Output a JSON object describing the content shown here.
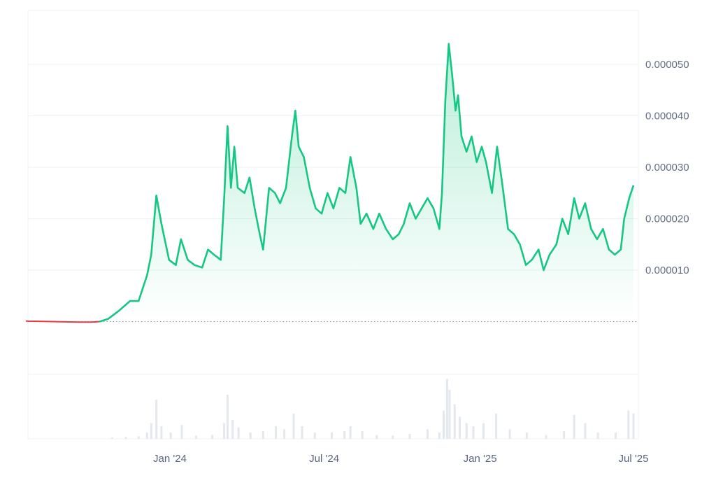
{
  "chart_data": {
    "type": "area",
    "title": "",
    "xlabel": "",
    "ylabel": "",
    "ylim": [
      -1e-05,
      6e-05
    ],
    "baseline_value": 0.0,
    "grid": "horizontal",
    "colors": {
      "up": "#16c784",
      "down": "#ea3943",
      "grid": "#eff2f5",
      "volume": "#e3e7ee"
    },
    "y_ticks": [
      {
        "value": 1e-05,
        "label": "0.000010"
      },
      {
        "value": 2e-05,
        "label": "0.000020"
      },
      {
        "value": 3e-05,
        "label": "0.000030"
      },
      {
        "value": 4e-05,
        "label": "0.000040"
      },
      {
        "value": 5e-05,
        "label": "0.000050"
      }
    ],
    "x_ticks": [
      {
        "date": "2024-01-01",
        "label": "Jan '24"
      },
      {
        "date": "2024-07-01",
        "label": "Jul '24"
      },
      {
        "date": "2025-01-01",
        "label": "Jan '25"
      },
      {
        "date": "2025-07-01",
        "label": "Jul '25"
      }
    ],
    "series": [
      {
        "points": [
          [
            "2023-07-15",
            1e-07
          ],
          [
            "2023-08-15",
            0.0
          ],
          [
            "2023-09-15",
            -1e-07
          ],
          [
            "2023-10-01",
            -1e-07
          ],
          [
            "2023-10-10",
            0.0
          ],
          [
            "2023-10-20",
            5e-07
          ],
          [
            "2023-11-01",
            2e-06
          ],
          [
            "2023-11-15",
            4e-06
          ],
          [
            "2023-11-25",
            4e-06
          ],
          [
            "2023-12-05",
            9e-06
          ],
          [
            "2023-12-10",
            1.3e-05
          ],
          [
            "2023-12-16",
            2.45e-05
          ],
          [
            "2023-12-22",
            1.9e-05
          ],
          [
            "2023-12-31",
            1.2e-05
          ],
          [
            "2024-01-08",
            1.1e-05
          ],
          [
            "2024-01-14",
            1.6e-05
          ],
          [
            "2024-01-22",
            1.2e-05
          ],
          [
            "2024-01-30",
            1.1e-05
          ],
          [
            "2024-02-08",
            1.05e-05
          ],
          [
            "2024-02-15",
            1.4e-05
          ],
          [
            "2024-02-22",
            1.3e-05
          ],
          [
            "2024-03-01",
            1.2e-05
          ],
          [
            "2024-03-05",
            2.4e-05
          ],
          [
            "2024-03-09",
            3.8e-05
          ],
          [
            "2024-03-13",
            2.6e-05
          ],
          [
            "2024-03-17",
            3.4e-05
          ],
          [
            "2024-03-21",
            2.6e-05
          ],
          [
            "2024-03-29",
            2.5e-05
          ],
          [
            "2024-04-04",
            2.8e-05
          ],
          [
            "2024-04-10",
            2.2e-05
          ],
          [
            "2024-04-16",
            1.7e-05
          ],
          [
            "2024-04-20",
            1.4e-05
          ],
          [
            "2024-04-27",
            2.6e-05
          ],
          [
            "2024-05-04",
            2.5e-05
          ],
          [
            "2024-05-10",
            2.3e-05
          ],
          [
            "2024-05-17",
            2.6e-05
          ],
          [
            "2024-05-24",
            3.6e-05
          ],
          [
            "2024-05-28",
            4.1e-05
          ],
          [
            "2024-06-01",
            3.4e-05
          ],
          [
            "2024-06-07",
            3.2e-05
          ],
          [
            "2024-06-14",
            2.6e-05
          ],
          [
            "2024-06-21",
            2.2e-05
          ],
          [
            "2024-06-28",
            2.1e-05
          ],
          [
            "2024-07-05",
            2.5e-05
          ],
          [
            "2024-07-12",
            2.2e-05
          ],
          [
            "2024-07-19",
            2.6e-05
          ],
          [
            "2024-07-26",
            2.5e-05
          ],
          [
            "2024-08-01",
            3.2e-05
          ],
          [
            "2024-08-08",
            2.6e-05
          ],
          [
            "2024-08-13",
            1.9e-05
          ],
          [
            "2024-08-20",
            2.1e-05
          ],
          [
            "2024-08-28",
            1.8e-05
          ],
          [
            "2024-09-04",
            2.1e-05
          ],
          [
            "2024-09-12",
            1.8e-05
          ],
          [
            "2024-09-20",
            1.6e-05
          ],
          [
            "2024-09-27",
            1.7e-05
          ],
          [
            "2024-10-03",
            1.9e-05
          ],
          [
            "2024-10-10",
            2.3e-05
          ],
          [
            "2024-10-17",
            2e-05
          ],
          [
            "2024-10-24",
            2.2e-05
          ],
          [
            "2024-10-31",
            2.4e-05
          ],
          [
            "2024-11-07",
            2.2e-05
          ],
          [
            "2024-11-14",
            1.8e-05
          ],
          [
            "2024-11-17",
            2.5e-05
          ],
          [
            "2024-11-21",
            4.3e-05
          ],
          [
            "2024-11-25",
            5.4e-05
          ],
          [
            "2024-11-29",
            4.8e-05
          ],
          [
            "2024-12-03",
            4.1e-05
          ],
          [
            "2024-12-06",
            4.4e-05
          ],
          [
            "2024-12-10",
            3.6e-05
          ],
          [
            "2024-12-16",
            3.3e-05
          ],
          [
            "2024-12-22",
            3.6e-05
          ],
          [
            "2024-12-28",
            3.1e-05
          ],
          [
            "2025-01-03",
            3.4e-05
          ],
          [
            "2025-01-08",
            3.1e-05
          ],
          [
            "2025-01-15",
            2.5e-05
          ],
          [
            "2025-01-21",
            3.4e-05
          ],
          [
            "2025-01-27",
            2.7e-05
          ],
          [
            "2025-02-03",
            1.8e-05
          ],
          [
            "2025-02-10",
            1.7e-05
          ],
          [
            "2025-02-17",
            1.5e-05
          ],
          [
            "2025-02-24",
            1.1e-05
          ],
          [
            "2025-03-03",
            1.2e-05
          ],
          [
            "2025-03-11",
            1.4e-05
          ],
          [
            "2025-03-17",
            1e-05
          ],
          [
            "2025-03-24",
            1.3e-05
          ],
          [
            "2025-04-01",
            1.5e-05
          ],
          [
            "2025-04-08",
            2e-05
          ],
          [
            "2025-04-15",
            1.7e-05
          ],
          [
            "2025-04-22",
            2.4e-05
          ],
          [
            "2025-04-28",
            2e-05
          ],
          [
            "2025-05-05",
            2.3e-05
          ],
          [
            "2025-05-12",
            1.8e-05
          ],
          [
            "2025-05-19",
            1.6e-05
          ],
          [
            "2025-05-26",
            1.8e-05
          ],
          [
            "2025-06-02",
            1.4e-05
          ],
          [
            "2025-06-09",
            1.3e-05
          ],
          [
            "2025-06-16",
            1.4e-05
          ],
          [
            "2025-06-20",
            2e-05
          ],
          [
            "2025-06-26",
            2.4e-05
          ],
          [
            "2025-07-01",
            2.65e-05
          ]
        ]
      }
    ],
    "volume": [
      [
        "2023-10-25",
        0.02
      ],
      [
        "2023-11-10",
        0.03
      ],
      [
        "2023-11-25",
        0.04
      ],
      [
        "2023-12-05",
        0.1
      ],
      [
        "2023-12-10",
        0.25
      ],
      [
        "2023-12-16",
        0.62
      ],
      [
        "2023-12-22",
        0.2
      ],
      [
        "2024-01-02",
        0.1
      ],
      [
        "2024-01-15",
        0.22
      ],
      [
        "2024-02-01",
        0.05
      ],
      [
        "2024-02-20",
        0.06
      ],
      [
        "2024-03-05",
        0.25
      ],
      [
        "2024-03-09",
        0.7
      ],
      [
        "2024-03-15",
        0.3
      ],
      [
        "2024-03-22",
        0.18
      ],
      [
        "2024-04-05",
        0.1
      ],
      [
        "2024-04-20",
        0.12
      ],
      [
        "2024-05-05",
        0.2
      ],
      [
        "2024-05-15",
        0.15
      ],
      [
        "2024-05-26",
        0.4
      ],
      [
        "2024-06-05",
        0.2
      ],
      [
        "2024-06-20",
        0.1
      ],
      [
        "2024-07-10",
        0.1
      ],
      [
        "2024-07-25",
        0.12
      ],
      [
        "2024-08-01",
        0.2
      ],
      [
        "2024-08-15",
        0.12
      ],
      [
        "2024-09-01",
        0.06
      ],
      [
        "2024-09-20",
        0.05
      ],
      [
        "2024-10-10",
        0.08
      ],
      [
        "2024-10-31",
        0.15
      ],
      [
        "2024-11-14",
        0.1
      ],
      [
        "2024-11-19",
        0.45
      ],
      [
        "2024-11-23",
        0.95
      ],
      [
        "2024-11-26",
        0.78
      ],
      [
        "2024-12-02",
        0.55
      ],
      [
        "2024-12-08",
        0.35
      ],
      [
        "2024-12-16",
        0.25
      ],
      [
        "2024-12-24",
        0.2
      ],
      [
        "2025-01-05",
        0.25
      ],
      [
        "2025-01-20",
        0.4
      ],
      [
        "2025-02-05",
        0.15
      ],
      [
        "2025-02-25",
        0.1
      ],
      [
        "2025-03-20",
        0.06
      ],
      [
        "2025-04-10",
        0.12
      ],
      [
        "2025-04-22",
        0.38
      ],
      [
        "2025-05-05",
        0.25
      ],
      [
        "2025-05-20",
        0.1
      ],
      [
        "2025-06-10",
        0.1
      ],
      [
        "2025-06-25",
        0.45
      ],
      [
        "2025-07-01",
        0.4
      ]
    ]
  }
}
